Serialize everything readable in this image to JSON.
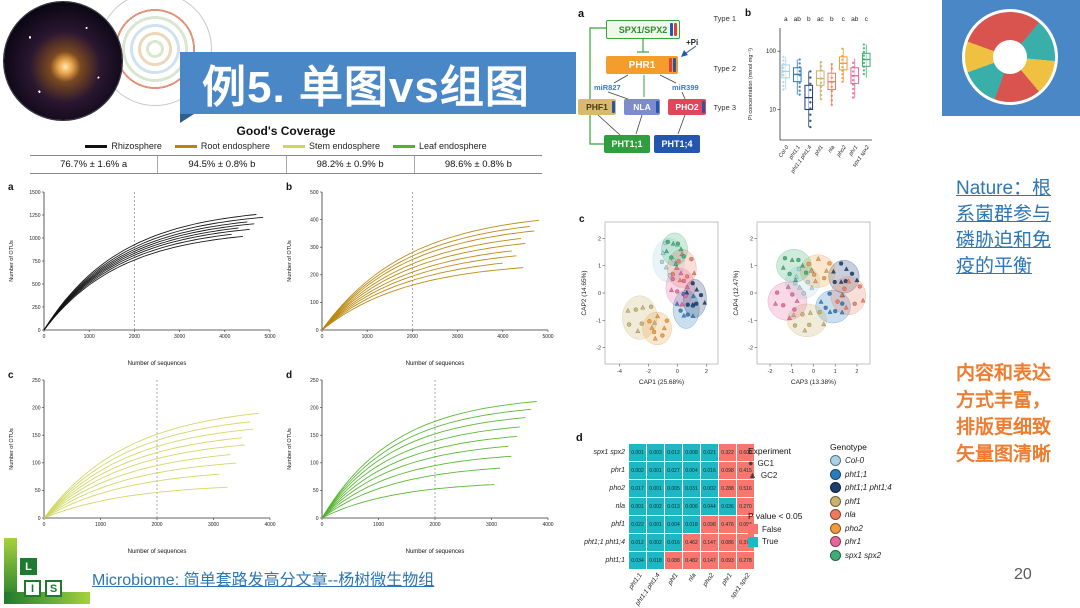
{
  "slide": {
    "title": "例5. 单图vs组图",
    "page_number": "20",
    "footer_link": "Microbiome: 简单套路发高分文章--杨树微生物组",
    "right_link_lines": [
      "Nature：根",
      "系菌群参与",
      "磷胁迫和免",
      "疫的平衡"
    ],
    "right_note_lines": [
      "内容和表达",
      "方式丰富，",
      "排版更细致",
      "矢量图清晰"
    ],
    "accent_blue": "#4a87c6"
  },
  "logo": {
    "letters": [
      "L",
      "I",
      "S"
    ]
  },
  "goods_coverage": {
    "title": "Good's Coverage",
    "groups": [
      {
        "label": "Rhizosphere",
        "color": "#111111",
        "value": "76.7% ± 1.6% a"
      },
      {
        "label": "Root endosphere",
        "color": "#b8860b",
        "value": "94.5% ± 0.8% b"
      },
      {
        "label": "Stem endosphere",
        "color": "#cdd760",
        "value": "98.2% ± 0.9% b"
      },
      {
        "label": "Leaf endosphere",
        "color": "#53b42c",
        "value": "98.6% ± 0.8% b"
      }
    ]
  },
  "pathway": {
    "panel": "a",
    "type_labels": [
      "Type 1",
      "Type 2",
      "Type 3"
    ],
    "pi_label": "+Pi",
    "nodes": {
      "spx": "SPX1/SPX2",
      "phr1": "PHR1",
      "mir827": "miR827",
      "mir399": "miR399",
      "phf1": "PHF1",
      "nla": "NLA",
      "pho2": "PHO2",
      "pht11": "PHT1;1",
      "pht14": "PHT1;4"
    }
  },
  "legends": {
    "experiment": {
      "title": "Experiment",
      "entries": [
        {
          "label": "GC1",
          "marker": "circle"
        },
        {
          "label": "GC2",
          "marker": "triangle"
        }
      ]
    },
    "pvalue": {
      "title": "P value < 0.05",
      "entries": [
        {
          "label": "False",
          "color": "#f8766d"
        },
        {
          "label": "True",
          "color": "#1db8c4"
        }
      ]
    },
    "genotype": {
      "title": "Genotype",
      "entries": [
        {
          "label": "Col-0",
          "color": "#a8d2e4"
        },
        {
          "label": "pht1;1",
          "color": "#2b7bba"
        },
        {
          "label": "pht1;1 pht1;4",
          "color": "#1c3f6e"
        },
        {
          "label": "phf1",
          "color": "#c9b36a"
        },
        {
          "label": "nla",
          "color": "#f07a5e"
        },
        {
          "label": "pho2",
          "color": "#f09a3c"
        },
        {
          "label": "phr1",
          "color": "#e8679a"
        },
        {
          "label": "spx1 spx2",
          "color": "#3fae74"
        }
      ]
    }
  },
  "chart_data": [
    {
      "id": "rarefaction_a",
      "type": "line",
      "panel": "a",
      "color": "#111111",
      "xlabel": "Number of sequences",
      "ylabel": "Number of OTUs",
      "xlim": [
        0,
        5000
      ],
      "ylim": [
        0,
        1500
      ],
      "xticks": [
        0,
        1000,
        2000,
        3000,
        4000,
        5000
      ],
      "yticks": [
        0,
        250,
        500,
        750,
        1000,
        1250,
        1500
      ],
      "dashed_x": 2000,
      "tau": 1700,
      "series_max": [
        1340,
        1300,
        1265,
        1235,
        1205,
        1175,
        1140,
        1100
      ],
      "series_end": [
        4700,
        4850,
        4500,
        4650,
        4300,
        4550,
        4150,
        4400
      ]
    },
    {
      "id": "rarefaction_b",
      "type": "line",
      "panel": "b",
      "color": "#b8860b",
      "xlabel": "Number of sequences",
      "ylabel": "Number of OTUs",
      "xlim": [
        0,
        5000
      ],
      "ylim": [
        0,
        500
      ],
      "xticks": [
        0,
        1000,
        2000,
        3000,
        4000,
        5000
      ],
      "yticks": [
        0,
        100,
        200,
        300,
        400,
        500
      ],
      "dashed_x": 2000,
      "tau": 1900,
      "series_max": [
        432,
        412,
        392,
        368,
        346,
        322,
        300,
        276,
        250
      ],
      "series_end": [
        4800,
        4600,
        4700,
        4400,
        4500,
        4200,
        4300,
        4000,
        4450
      ]
    },
    {
      "id": "rarefaction_c",
      "type": "line",
      "panel": "c",
      "color": "#cdd760",
      "xlabel": "Number of sequences",
      "ylabel": "Number of OTUs",
      "xlim": [
        0,
        4000
      ],
      "ylim": [
        0,
        250
      ],
      "xticks": [
        0,
        1000,
        2000,
        3000,
        4000
      ],
      "yticks": [
        0,
        50,
        100,
        150,
        200,
        250
      ],
      "dashed_x": 2000,
      "tau": 1500,
      "series_max": [
        206,
        191,
        176,
        161,
        146,
        129,
        111,
        91,
        63
      ],
      "series_end": [
        3800,
        3650,
        3700,
        3500,
        3550,
        3300,
        3400,
        3100,
        3250
      ]
    },
    {
      "id": "rarefaction_d",
      "type": "line",
      "panel": "d",
      "color": "#53b42c",
      "xlabel": "Number of sequences",
      "ylabel": "Number of OTUs",
      "xlim": [
        0,
        4000
      ],
      "ylim": [
        0,
        250
      ],
      "xticks": [
        0,
        1000,
        2000,
        3000,
        4000
      ],
      "yticks": [
        0,
        50,
        100,
        150,
        200,
        250
      ],
      "dashed_x": 2000,
      "tau": 1300,
      "series_max": [
        223,
        209,
        194,
        177,
        159,
        141,
        121,
        99,
        67
      ],
      "series_end": [
        3800,
        3700,
        3600,
        3500,
        3450,
        3300,
        3350,
        3150,
        3050
      ]
    },
    {
      "id": "pi_boxplot",
      "type": "box",
      "panel": "b",
      "ylabel": "Pi concentration (mmol mg⁻¹)",
      "yticks": [
        10,
        100
      ],
      "ylim_log": [
        3,
        250
      ],
      "sig_letters": [
        "a",
        "ab",
        "b",
        "ac",
        "b",
        "c",
        "ab",
        "c"
      ],
      "categories": [
        "Col-0",
        "pht1;1",
        "pht1;1 pht1;4",
        "phf1",
        "nla",
        "pho2",
        "phr1",
        "spx1 spx2"
      ],
      "colors": [
        "#a8d2e4",
        "#2b7bba",
        "#1c3f6e",
        "#c9b36a",
        "#f07a5e",
        "#f09a3c",
        "#e8679a",
        "#3fae74"
      ],
      "boxes": [
        {
          "lo": 22,
          "q1": 35,
          "med": 45,
          "q3": 58,
          "hi": 80
        },
        {
          "lo": 18,
          "q1": 30,
          "med": 40,
          "q3": 52,
          "hi": 72
        },
        {
          "lo": 5,
          "q1": 10,
          "med": 16,
          "q3": 26,
          "hi": 45
        },
        {
          "lo": 15,
          "q1": 26,
          "med": 34,
          "q3": 46,
          "hi": 65
        },
        {
          "lo": 12,
          "q1": 22,
          "med": 30,
          "q3": 42,
          "hi": 60
        },
        {
          "lo": 30,
          "q1": 48,
          "med": 62,
          "q3": 80,
          "hi": 110
        },
        {
          "lo": 16,
          "q1": 28,
          "med": 38,
          "q3": 52,
          "hi": 75
        },
        {
          "lo": 35,
          "q1": 55,
          "med": 72,
          "q3": 92,
          "hi": 130
        }
      ]
    },
    {
      "id": "cap12",
      "type": "scatter",
      "panel": "c",
      "xlabel": "CAP1 (25.68%)",
      "ylabel": "CAP2 (14.65%)",
      "xlim": [
        -5,
        2.8
      ],
      "ylim": [
        -2.6,
        2.6
      ],
      "xticks": [
        -4,
        -2,
        0,
        2
      ],
      "yticks": [
        -2,
        -1,
        0,
        1,
        2
      ],
      "groups": [
        {
          "name": "Col-0",
          "color": "#a8d2e4",
          "cx": -0.6,
          "cy": 1.2,
          "rx": 1.1,
          "ry": 0.8,
          "n": 8
        },
        {
          "name": "pht1;1",
          "color": "#2b7bba",
          "cx": 0.6,
          "cy": -0.6,
          "rx": 0.9,
          "ry": 0.7,
          "n": 8
        },
        {
          "name": "pht1;1 pht1;4",
          "color": "#1c3f6e",
          "cx": 1.2,
          "cy": -0.2,
          "rx": 0.8,
          "ry": 0.7,
          "n": 8
        },
        {
          "name": "phf1",
          "color": "#c9b36a",
          "cx": -2.6,
          "cy": -0.9,
          "rx": 1.2,
          "ry": 0.8,
          "n": 8
        },
        {
          "name": "nla",
          "color": "#f07a5e",
          "cx": 0.3,
          "cy": 0.9,
          "rx": 1.0,
          "ry": 0.7,
          "n": 8
        },
        {
          "name": "pho2",
          "color": "#f09a3c",
          "cx": -1.4,
          "cy": -1.3,
          "rx": 1.0,
          "ry": 0.6,
          "n": 8
        },
        {
          "name": "phr1",
          "color": "#e8679a",
          "cx": 0.2,
          "cy": 0.2,
          "rx": 1.0,
          "ry": 0.7,
          "n": 8
        },
        {
          "name": "spx1 spx2",
          "color": "#3fae74",
          "cx": -0.2,
          "cy": 1.6,
          "rx": 0.9,
          "ry": 0.6,
          "n": 8
        }
      ]
    },
    {
      "id": "cap34",
      "type": "scatter",
      "panel": "",
      "xlabel": "CAP3 (13.38%)",
      "ylabel": "CAP4 (12.47%)",
      "xlim": [
        -2.6,
        2.6
      ],
      "ylim": [
        -2.6,
        2.6
      ],
      "xticks": [
        -2,
        -1,
        0,
        1,
        2
      ],
      "yticks": [
        -2,
        -1,
        0,
        1,
        2
      ],
      "groups": [
        {
          "name": "Col-0",
          "color": "#a8d2e4",
          "cx": -0.5,
          "cy": 0.4,
          "rx": 0.8,
          "ry": 0.6,
          "n": 8
        },
        {
          "name": "pht1;1",
          "color": "#2b7bba",
          "cx": 0.9,
          "cy": -0.5,
          "rx": 0.8,
          "ry": 0.6,
          "n": 8
        },
        {
          "name": "pht1;1 pht1;4",
          "color": "#1c3f6e",
          "cx": 1.4,
          "cy": 0.6,
          "rx": 0.7,
          "ry": 0.6,
          "n": 8
        },
        {
          "name": "phf1",
          "color": "#c9b36a",
          "cx": -0.3,
          "cy": -1.0,
          "rx": 0.9,
          "ry": 0.6,
          "n": 8
        },
        {
          "name": "nla",
          "color": "#f07a5e",
          "cx": 1.6,
          "cy": -0.1,
          "rx": 0.8,
          "ry": 0.7,
          "n": 8
        },
        {
          "name": "pho2",
          "color": "#f09a3c",
          "cx": 0.2,
          "cy": 0.8,
          "rx": 0.8,
          "ry": 0.6,
          "n": 8
        },
        {
          "name": "phr1",
          "color": "#e8679a",
          "cx": -1.2,
          "cy": -0.3,
          "rx": 0.9,
          "ry": 0.7,
          "n": 8
        },
        {
          "name": "spx1 spx2",
          "color": "#3fae74",
          "cx": -0.9,
          "cy": 1.0,
          "rx": 0.8,
          "ry": 0.6,
          "n": 8
        }
      ]
    },
    {
      "id": "pvalue_heatmap",
      "type": "heatmap",
      "panel": "d",
      "rows": [
        "spx1 spx2",
        "phr1",
        "pho2",
        "nla",
        "phf1",
        "pht1;1 pht1;4",
        "pht1;1"
      ],
      "cols": [
        "pht1;1",
        "pht1;1 pht1;4",
        "phf1",
        "nla",
        "pho2",
        "phr1",
        "spx1 spx2"
      ],
      "true_color": "#1db8c4",
      "false_color": "#f8766d",
      "cells": [
        [
          {
            "v": "0.001",
            "t": true
          },
          {
            "v": "0.003",
            "t": true
          },
          {
            "v": "0.012",
            "t": true
          },
          {
            "v": "0.008",
            "t": true
          },
          {
            "v": "0.021",
            "t": true
          },
          {
            "v": "0.322",
            "t": false
          },
          {
            "v": "0.609",
            "t": false
          }
        ],
        [
          {
            "v": "0.002",
            "t": true
          },
          {
            "v": "0.001",
            "t": true
          },
          {
            "v": "0.027",
            "t": true
          },
          {
            "v": "0.004",
            "t": true
          },
          {
            "v": "0.016",
            "t": true
          },
          {
            "v": "0.098",
            "t": false
          },
          {
            "v": "0.415",
            "t": false
          }
        ],
        [
          {
            "v": "0.017",
            "t": true
          },
          {
            "v": "0.001",
            "t": true
          },
          {
            "v": "0.005",
            "t": true
          },
          {
            "v": "0.031",
            "t": true
          },
          {
            "v": "0.002",
            "t": true
          },
          {
            "v": "0.288",
            "t": false
          },
          {
            "v": "0.516",
            "t": false
          }
        ],
        [
          {
            "v": "0.001",
            "t": true
          },
          {
            "v": "0.002",
            "t": true
          },
          {
            "v": "0.013",
            "t": true
          },
          {
            "v": "0.006",
            "t": true
          },
          {
            "v": "0.044",
            "t": true
          },
          {
            "v": "0.036",
            "t": true
          },
          {
            "v": "0.270",
            "t": false
          }
        ],
        [
          {
            "v": "0.022",
            "t": true
          },
          {
            "v": "0.001",
            "t": true
          },
          {
            "v": "0.004",
            "t": true
          },
          {
            "v": "0.018",
            "t": true
          },
          {
            "v": "0.098",
            "t": false
          },
          {
            "v": "0.476",
            "t": false
          },
          {
            "v": "0.094",
            "t": false
          }
        ],
        [
          {
            "v": "0.012",
            "t": true
          },
          {
            "v": "0.002",
            "t": true
          },
          {
            "v": "0.016",
            "t": true
          },
          {
            "v": "0.462",
            "t": false
          },
          {
            "v": "0.147",
            "t": false
          },
          {
            "v": "0.086",
            "t": false
          },
          {
            "v": "0.371",
            "t": false
          }
        ],
        [
          {
            "v": "0.034",
            "t": true
          },
          {
            "v": "0.018",
            "t": true
          },
          {
            "v": "0.088",
            "t": false
          },
          {
            "v": "0.482",
            "t": false
          },
          {
            "v": "0.147",
            "t": false
          },
          {
            "v": "0.093",
            "t": false
          },
          {
            "v": "0.278",
            "t": false
          }
        ]
      ]
    }
  ]
}
